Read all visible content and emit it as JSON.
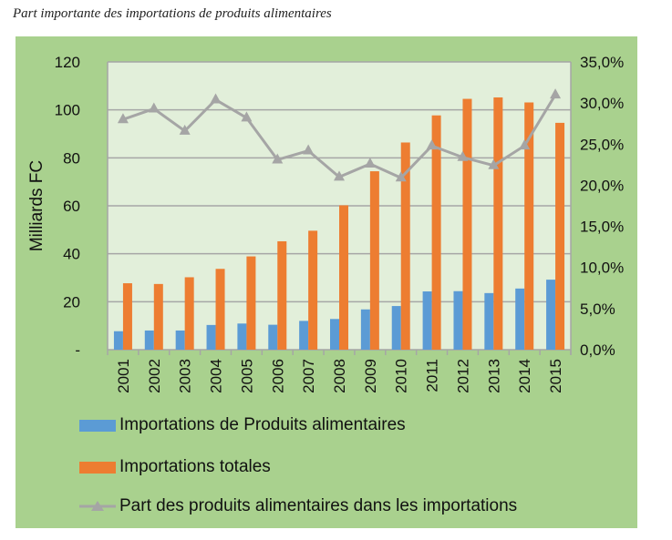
{
  "title": "Part importante des importations de produits alimentaires",
  "chart_data": {
    "type": "bar",
    "categories": [
      "2001",
      "2002",
      "2003",
      "2004",
      "2005",
      "2006",
      "2007",
      "2008",
      "2009",
      "2010",
      "2011",
      "2012",
      "2013",
      "2014",
      "2015"
    ],
    "ylabel": "Milliards FC",
    "ylim": [
      0,
      120
    ],
    "y_ticks": [
      "-",
      "20",
      "40",
      "60",
      "80",
      "100",
      "120"
    ],
    "y2lim": [
      0,
      35
    ],
    "y2_ticks": [
      "0,0%",
      "5,0%",
      "10,0%",
      "15,0%",
      "20,0%",
      "25,0%",
      "30,0%",
      "35,0%"
    ],
    "grid": true,
    "legend": "bottom",
    "series": [
      {
        "name": "Importations de Produits alimentaires",
        "type": "bar",
        "axis": "left",
        "color": "#5b9bd5",
        "values": [
          7.7,
          8.0,
          8.0,
          10.3,
          10.9,
          10.4,
          12.0,
          12.8,
          16.8,
          18.2,
          24.3,
          24.4,
          23.6,
          25.5,
          29.2
        ]
      },
      {
        "name": "Importations totales",
        "type": "bar",
        "axis": "left",
        "color": "#ed7d31",
        "values": [
          27.7,
          27.4,
          30.2,
          33.7,
          38.9,
          45.2,
          49.6,
          60.2,
          74.4,
          86.4,
          97.7,
          104.6,
          105.2,
          103.1,
          94.6
        ]
      },
      {
        "name": "Part des produits alimentaires dans les importations",
        "type": "line",
        "axis": "right",
        "unit": "%",
        "color": "#a5a5a5",
        "marker": "triangle",
        "values": [
          28.0,
          29.3,
          26.6,
          30.4,
          28.2,
          23.1,
          24.2,
          21.0,
          22.6,
          20.9,
          24.8,
          23.4,
          22.4,
          24.8,
          31.0
        ]
      }
    ]
  }
}
